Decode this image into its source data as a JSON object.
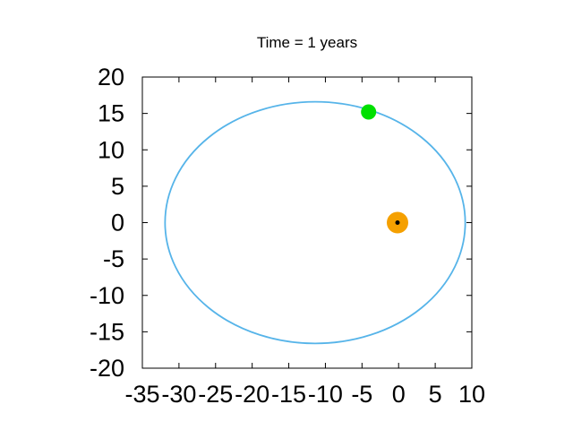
{
  "chart_data": {
    "type": "scatter",
    "title": "Time = 1 years",
    "xlabel": "",
    "ylabel": "",
    "xlim": [
      -35,
      10
    ],
    "ylim": [
      -20,
      20
    ],
    "xticks": [
      -35,
      -30,
      -25,
      -20,
      -15,
      -10,
      -5,
      0,
      5,
      10
    ],
    "yticks": [
      20,
      15,
      10,
      5,
      0,
      -5,
      -10,
      -15,
      -20
    ],
    "xtick_labels": [
      "-35",
      "-30",
      "-25",
      "-20",
      "-15",
      "-10",
      "-5",
      "0",
      "5",
      "10"
    ],
    "ytick_labels": [
      "20",
      "15",
      "10",
      "5",
      "0",
      "-5",
      "-10",
      "-15",
      "-20"
    ],
    "grid": false,
    "orbit": {
      "center_x": -11.4,
      "center_y": 0,
      "semi_major_x": 20.5,
      "semi_minor_y": 16.6,
      "color": "#56b4e9"
    },
    "bodies": [
      {
        "name": "Sun",
        "x": -0.15,
        "y": 0.0,
        "color": "#f5a000",
        "core_color": "#000000"
      },
      {
        "name": "Planet",
        "x": -4.1,
        "y": 15.2,
        "color": "#00e000"
      }
    ]
  }
}
